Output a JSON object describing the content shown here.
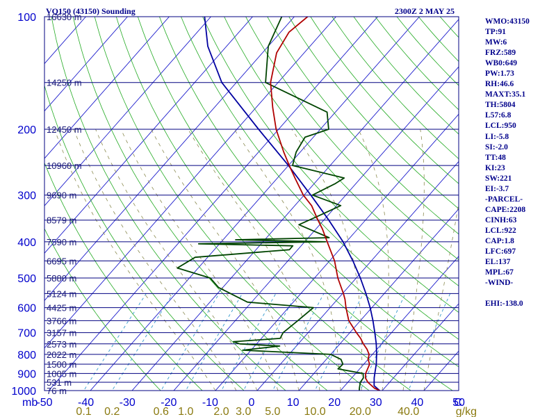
{
  "title_left": "VQ150 (43150) Sounding",
  "title_right": "2300Z  2 MAY 25",
  "colors": {
    "isobar": "#000080",
    "isotherm": "#1c1ccc",
    "dry_adiabat": "#22aa22",
    "moist_adiabat": "#8a8a50",
    "mixing_ratio": "#3399cc",
    "temperature": "#b00000",
    "dewpoint": "#004400",
    "parcel": "#0000a0",
    "stats_text": "#00008b",
    "axis_text": "#0000cc",
    "mixing_text": "#8a7a10"
  },
  "chart_data": {
    "type": "skew-t",
    "pressure_axis": {
      "ylim_hpa": [
        1000,
        100
      ],
      "tick_labels": [
        "100",
        "200",
        "300",
        "400",
        "500",
        "600",
        "700",
        "800",
        "900",
        "1000"
      ],
      "axis_unit": "mb"
    },
    "temperature_axis": {
      "xlim_c": [
        -50,
        50
      ],
      "tick_labels": [
        "-50",
        "-40",
        "-30",
        "-20",
        "-10",
        "0",
        "10",
        "20",
        "30",
        "40",
        "50"
      ]
    },
    "mixing_ratio_labels": [
      "0.1",
      "0.2",
      "0.6",
      "1.0",
      "2.0",
      "3.0",
      "5.0",
      "10.0",
      "20.0",
      "40.0"
    ],
    "mixing_ratio_unit": "g/kg",
    "heights": [
      {
        "p": 100,
        "label": "16630 m"
      },
      {
        "p": 150,
        "label": "14250 m"
      },
      {
        "p": 200,
        "label": "12450 m"
      },
      {
        "p": 250,
        "label": "10960 m"
      },
      {
        "p": 300,
        "label": "9690 m"
      },
      {
        "p": 350,
        "label": "8579 m"
      },
      {
        "p": 400,
        "label": "7590 m"
      },
      {
        "p": 450,
        "label": "6695 m"
      },
      {
        "p": 500,
        "label": "5880 m"
      },
      {
        "p": 550,
        "label": "5124 m"
      },
      {
        "p": 600,
        "label": "4425 m"
      },
      {
        "p": 650,
        "label": "3766 m"
      },
      {
        "p": 700,
        "label": "3157 m"
      },
      {
        "p": 750,
        "label": "2573 m"
      },
      {
        "p": 800,
        "label": "2022 m"
      },
      {
        "p": 850,
        "label": "1500 m"
      },
      {
        "p": 900,
        "label": "1005 m"
      },
      {
        "p": 950,
        "label": "531 m"
      },
      {
        "p": 1000,
        "label": "76 m"
      }
    ],
    "temperature": [
      [
        1000,
        29.4
      ],
      [
        985,
        27.6
      ],
      [
        950,
        24.8
      ],
      [
        925,
        23.3
      ],
      [
        900,
        22.4
      ],
      [
        875,
        21.9
      ],
      [
        850,
        21.4
      ],
      [
        825,
        20.0
      ],
      [
        800,
        19.2
      ],
      [
        775,
        17.6
      ],
      [
        750,
        15.6
      ],
      [
        725,
        13.8
      ],
      [
        700,
        11.6
      ],
      [
        650,
        7.2
      ],
      [
        600,
        3.8
      ],
      [
        570,
        1.8
      ],
      [
        550,
        0.2
      ],
      [
        500,
        -4.4
      ],
      [
        450,
        -8.8
      ],
      [
        400,
        -14.6
      ],
      [
        370,
        -18.4
      ],
      [
        350,
        -21.4
      ],
      [
        320,
        -26.0
      ],
      [
        300,
        -30.2
      ],
      [
        270,
        -35.8
      ],
      [
        250,
        -39.8
      ],
      [
        230,
        -44.0
      ],
      [
        200,
        -50.6
      ],
      [
        175,
        -56.0
      ],
      [
        150,
        -61.8
      ],
      [
        125,
        -66.6
      ],
      [
        110,
        -68.0
      ],
      [
        100,
        -66.8
      ]
    ],
    "dewpoint": [
      [
        1000,
        24.5
      ],
      [
        985,
        24.0
      ],
      [
        950,
        23.0
      ],
      [
        925,
        22.8
      ],
      [
        900,
        21.8
      ],
      [
        875,
        14.8
      ],
      [
        850,
        15.0
      ],
      [
        825,
        13.5
      ],
      [
        800,
        10.0
      ],
      [
        780,
        -12.0
      ],
      [
        760,
        -4.0
      ],
      [
        750,
        -14.0
      ],
      [
        740,
        -16.0
      ],
      [
        725,
        -5.5
      ],
      [
        700,
        -6.0
      ],
      [
        650,
        -5.0
      ],
      [
        600,
        -4.0
      ],
      [
        580,
        -21.0
      ],
      [
        530,
        -31.0
      ],
      [
        500,
        -35.0
      ],
      [
        470,
        -45.0
      ],
      [
        440,
        -43.0
      ],
      [
        420,
        -22.0
      ],
      [
        410,
        -22.0
      ],
      [
        405,
        -45.0
      ],
      [
        400,
        -15.0
      ],
      [
        395,
        -37.0
      ],
      [
        390,
        -15.0
      ],
      [
        360,
        -25.0
      ],
      [
        340,
        -22.0
      ],
      [
        320,
        -19.0
      ],
      [
        300,
        -28.0
      ],
      [
        280,
        -25.0
      ],
      [
        270,
        -24.0
      ],
      [
        250,
        -39.0
      ],
      [
        240,
        -40.0
      ],
      [
        230,
        -41.0
      ],
      [
        210,
        -42.0
      ],
      [
        200,
        -38.0
      ],
      [
        180,
        -42.0
      ],
      [
        150,
        -63.0
      ],
      [
        120,
        -70.0
      ],
      [
        100,
        -73.0
      ]
    ],
    "parcel": [
      [
        1000,
        29.4
      ],
      [
        970,
        27.0
      ],
      [
        925,
        25.4
      ],
      [
        900,
        24.6
      ],
      [
        850,
        23.0
      ],
      [
        800,
        21.0
      ],
      [
        750,
        18.7
      ],
      [
        700,
        16.0
      ],
      [
        650,
        13.0
      ],
      [
        600,
        9.6
      ],
      [
        550,
        5.6
      ],
      [
        500,
        1.0
      ],
      [
        450,
        -4.4
      ],
      [
        400,
        -10.8
      ],
      [
        350,
        -18.8
      ],
      [
        300,
        -28.4
      ],
      [
        250,
        -40.0
      ],
      [
        200,
        -54.8
      ],
      [
        150,
        -73.5
      ],
      [
        120,
        -84.5
      ],
      [
        100,
        -91.5
      ]
    ],
    "grid": {
      "isobars_hpa": [
        100,
        150,
        200,
        250,
        300,
        350,
        400,
        450,
        500,
        550,
        600,
        650,
        700,
        750,
        800,
        850,
        900,
        950,
        1000
      ],
      "isotherm_step_c": 10,
      "dry_adiabats_k": [
        250,
        260,
        270,
        280,
        290,
        300,
        310,
        320,
        330,
        340,
        350,
        360,
        370,
        380,
        390,
        400,
        410,
        420,
        430,
        440,
        450,
        460,
        470,
        480,
        490,
        500,
        510
      ],
      "moist_adiabats_c": [
        -10,
        -5,
        0,
        5,
        10,
        15,
        20,
        25,
        30,
        35,
        40
      ],
      "mixing_ratios_gkg": [
        0.1,
        0.2,
        0.6,
        1.0,
        2.0,
        3.0,
        5.0,
        10.0,
        20.0,
        40.0
      ]
    }
  },
  "stats": [
    "WMO:43150",
    "TP:91",
    "MW:6",
    "FRZ:589",
    "WB0:649",
    "PW:1.73",
    "RH:46.6",
    "MAXT:35.1",
    "TH:5804",
    "L57:6.8",
    "LCL:950",
    "LI:-5.8",
    "SI:-2.0",
    "TT:48",
    "KI:23",
    "SW:221",
    "EI:-3.7",
    "-PARCEL-",
    "CAPE:2208",
    "CINH:63",
    "LCL:922",
    "CAP:1.8",
    "LFC:697",
    "EL:137",
    "MPL:67",
    "-WIND-",
    "",
    "EHI:-138.0"
  ]
}
